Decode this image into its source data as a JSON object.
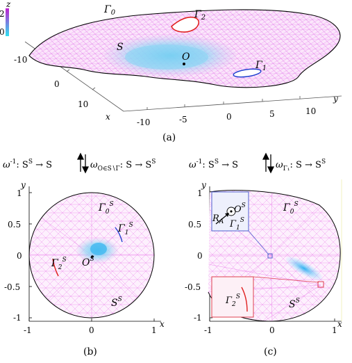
{
  "panel_a": {
    "caption": "(a)",
    "zbar": {
      "label": "z",
      "max": "2",
      "min": "0"
    },
    "curves": {
      "g0": "Γ",
      "g0_sub": "0",
      "g2": "Γ",
      "g2_sub": "2",
      "g1": "Γ",
      "g1_sub": "1",
      "s": "S",
      "o": "O"
    },
    "x_axis": {
      "label": "x",
      "ticks": [
        "-10",
        "0",
        "10"
      ]
    },
    "y_axis": {
      "label": "y",
      "ticks": [
        "-10",
        "-5",
        "0",
        "5",
        "10"
      ]
    }
  },
  "equations": {
    "left": {
      "inv": "ω",
      "inv_sup": "-1",
      "inv_map": ": S",
      "inv_map_sup": "S",
      "inv_arrow": " → S",
      "fwd": "ω",
      "fwd_sub": "O∈S∖Γ",
      "fwd_map": ": S → S",
      "fwd_map_sup": "S"
    },
    "right": {
      "inv": "ω",
      "inv_sup": "-1",
      "inv_map": ": S",
      "inv_map_sup": "S",
      "inv_arrow": " → S",
      "fwd": "ω",
      "fwd_sub": "Γ₁",
      "fwd_map": ": S → S",
      "fwd_map_sup": "S"
    }
  },
  "panel_b": {
    "caption": "(b)",
    "labels": {
      "g0": "Γ",
      "g0_sub": "0",
      "g0_sup": "S",
      "g1": "Γ",
      "g1_sub": "1",
      "g1_sup": "S",
      "g2": "Γ",
      "g2_sub": "2",
      "g2_sup": "S",
      "o": "O",
      "o_sup": "S",
      "s": "S",
      "s_sup": "S"
    },
    "x_axis": {
      "label": "x",
      "ticks": [
        "-1",
        "0",
        "1"
      ]
    },
    "y_axis": {
      "label": "y",
      "ticks": [
        "1",
        "0.5",
        "0",
        "-0.5",
        "-1"
      ]
    }
  },
  "panel_c": {
    "caption": "(c)",
    "labels": {
      "g0": "Γ",
      "g0_sub": "0",
      "g0_sup": "S",
      "g1": "Γ",
      "g1_sub": "1",
      "g1_sup": "S",
      "g2": "Γ",
      "g2_sub": "2",
      "g2_sup": "S",
      "o": "O",
      "o_sup": "S",
      "s": "S",
      "s_sup": "S",
      "ra": "R",
      "ra_sub": "A"
    },
    "x_axis": {
      "label": "x",
      "ticks": [
        "-1",
        "0",
        "1"
      ]
    },
    "y_axis": {
      "label": "y",
      "ticks": [
        "1",
        "0.5",
        "0",
        "-0.5",
        "-1"
      ]
    }
  },
  "colors": {
    "mesh": "#e040e8",
    "center": "#40c8f0",
    "boundary": "#000000",
    "hole2": "#e02020",
    "hole1": "#2040d0",
    "inset_blue": "#5060d0",
    "inset_red": "#e04050"
  }
}
